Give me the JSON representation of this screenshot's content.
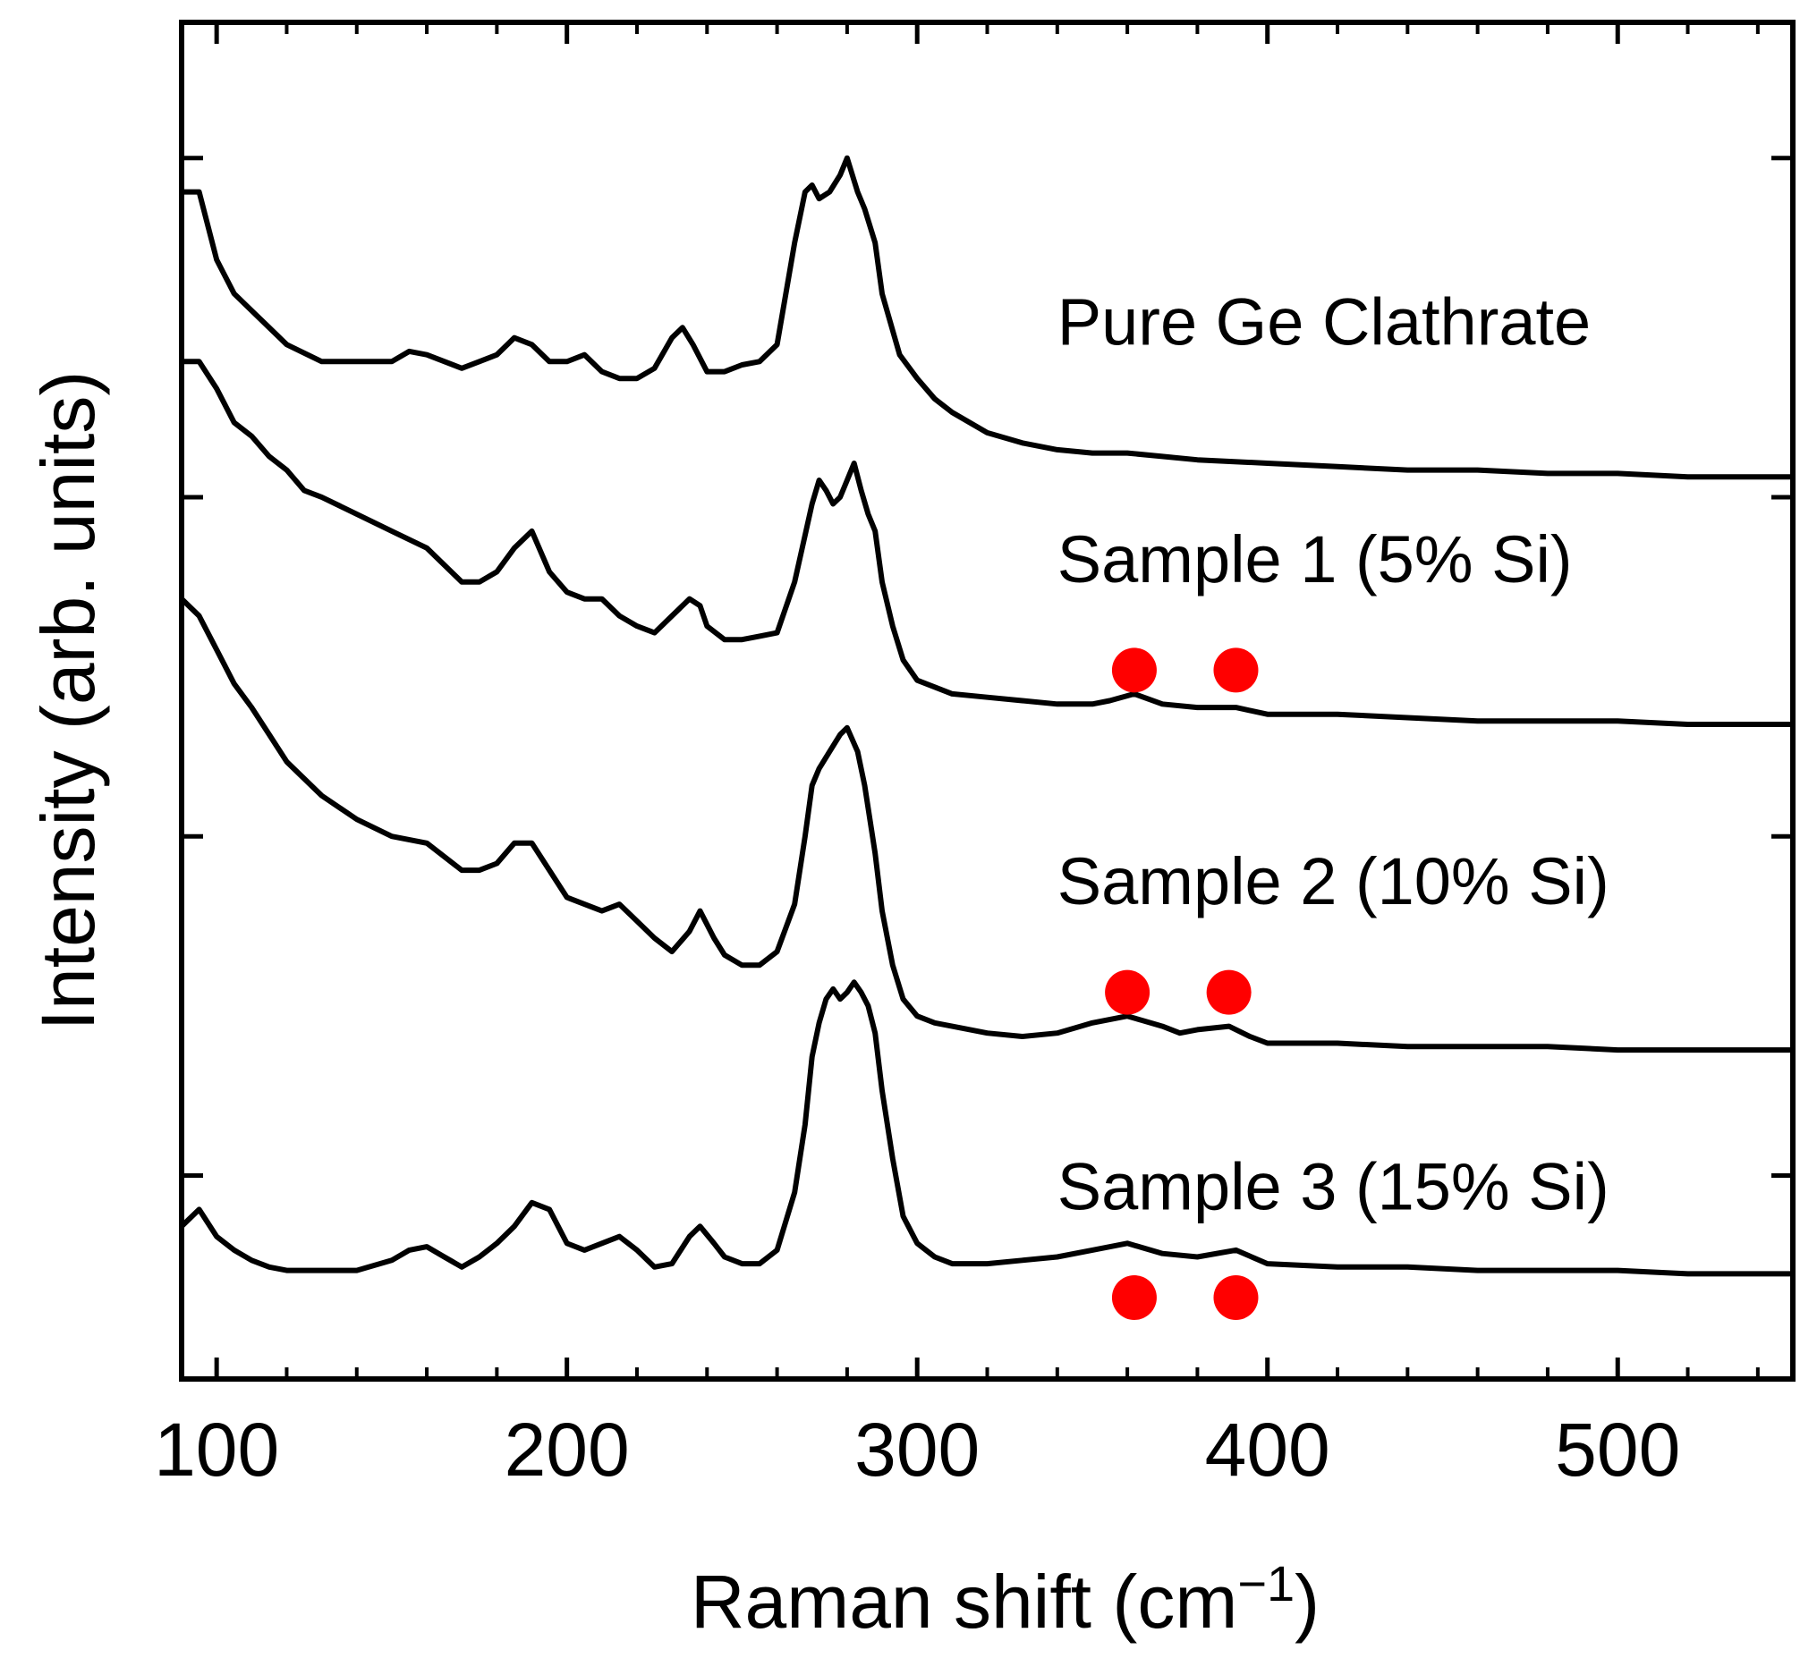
{
  "chart_data": {
    "type": "line",
    "title": "",
    "xlabel": "Raman shift (cm",
    "xlabel_superscript": "−1",
    "xlabel_suffix": ")",
    "ylabel": "Intensity (arb. units)",
    "xlim": [
      90,
      550
    ],
    "ylim": [
      0,
      4
    ],
    "x_ticks": [
      100,
      200,
      300,
      400,
      500
    ],
    "x_tick_labels": [
      "100",
      "200",
      "300",
      "400",
      "500"
    ],
    "x_minor_ticks": [
      120,
      140,
      160,
      180,
      220,
      240,
      260,
      280,
      320,
      340,
      360,
      380,
      420,
      440,
      460,
      480,
      520,
      540
    ],
    "y_ticks": [
      0.6,
      1.6,
      2.6,
      3.6
    ],
    "y_tick_labels": [],
    "grid": false,
    "line_color": "#000000",
    "marker_color": "#ff0000",
    "series": [
      {
        "name": "Pure Ge Clathrate",
        "label_x": 340,
        "label_y": 3.05,
        "markers": [],
        "x": [
          90,
          95,
          100,
          105,
          110,
          115,
          120,
          130,
          140,
          150,
          155,
          160,
          170,
          175,
          180,
          185,
          190,
          195,
          200,
          205,
          210,
          215,
          220,
          225,
          230,
          233,
          236,
          240,
          245,
          250,
          255,
          260,
          265,
          268,
          270,
          272,
          275,
          278,
          280,
          283,
          285,
          288,
          290,
          295,
          300,
          305,
          310,
          315,
          320,
          330,
          340,
          350,
          360,
          370,
          380,
          400,
          420,
          440,
          460,
          480,
          500,
          520,
          540,
          550
        ],
        "y": [
          3.5,
          3.5,
          3.3,
          3.2,
          3.15,
          3.1,
          3.05,
          3.0,
          3.0,
          3.0,
          3.03,
          3.02,
          2.98,
          3.0,
          3.02,
          3.07,
          3.05,
          3.0,
          3.0,
          3.02,
          2.97,
          2.95,
          2.95,
          2.98,
          3.07,
          3.1,
          3.05,
          2.97,
          2.97,
          2.99,
          3.0,
          3.05,
          3.35,
          3.5,
          3.52,
          3.48,
          3.5,
          3.55,
          3.6,
          3.5,
          3.45,
          3.35,
          3.2,
          3.02,
          2.95,
          2.89,
          2.85,
          2.82,
          2.79,
          2.76,
          2.74,
          2.73,
          2.73,
          2.72,
          2.71,
          2.7,
          2.69,
          2.68,
          2.68,
          2.67,
          2.67,
          2.66,
          2.66,
          2.66
        ]
      },
      {
        "name": "Sample 1 (5% Si)",
        "label_x": 340,
        "label_y": 2.35,
        "markers": [
          362,
          391
        ],
        "x": [
          90,
          95,
          100,
          105,
          110,
          115,
          120,
          125,
          130,
          140,
          150,
          160,
          170,
          175,
          180,
          185,
          190,
          195,
          200,
          205,
          210,
          215,
          220,
          225,
          230,
          235,
          238,
          240,
          245,
          250,
          255,
          260,
          265,
          270,
          272,
          274,
          276,
          278,
          280,
          282,
          284,
          286,
          288,
          290,
          293,
          296,
          300,
          305,
          310,
          320,
          330,
          340,
          350,
          355,
          362,
          370,
          380,
          391,
          400,
          420,
          440,
          460,
          480,
          500,
          520,
          540,
          550
        ],
        "y": [
          3.0,
          3.0,
          2.92,
          2.82,
          2.78,
          2.72,
          2.68,
          2.62,
          2.6,
          2.55,
          2.5,
          2.45,
          2.35,
          2.35,
          2.38,
          2.45,
          2.5,
          2.38,
          2.32,
          2.3,
          2.3,
          2.25,
          2.22,
          2.2,
          2.25,
          2.3,
          2.28,
          2.22,
          2.18,
          2.18,
          2.19,
          2.2,
          2.35,
          2.58,
          2.65,
          2.62,
          2.58,
          2.6,
          2.65,
          2.7,
          2.62,
          2.55,
          2.5,
          2.35,
          2.22,
          2.12,
          2.06,
          2.04,
          2.02,
          2.01,
          2.0,
          1.99,
          1.99,
          2.0,
          2.02,
          1.99,
          1.98,
          1.98,
          1.96,
          1.96,
          1.95,
          1.94,
          1.94,
          1.94,
          1.93,
          1.93,
          1.93
        ]
      },
      {
        "name": "Sample 2 (10% Si)",
        "label_x": 340,
        "label_y": 1.4,
        "markers": [
          360,
          389
        ],
        "x": [
          90,
          95,
          100,
          105,
          110,
          115,
          120,
          130,
          140,
          150,
          160,
          170,
          175,
          180,
          185,
          190,
          195,
          200,
          205,
          210,
          215,
          220,
          225,
          230,
          235,
          238,
          242,
          245,
          250,
          255,
          260,
          265,
          268,
          270,
          272,
          275,
          278,
          280,
          283,
          285,
          288,
          290,
          293,
          296,
          300,
          305,
          310,
          320,
          330,
          340,
          350,
          360,
          370,
          375,
          380,
          389,
          395,
          400,
          420,
          440,
          460,
          480,
          500,
          520,
          540,
          550
        ],
        "y": [
          2.3,
          2.25,
          2.15,
          2.05,
          1.98,
          1.9,
          1.82,
          1.72,
          1.65,
          1.6,
          1.58,
          1.5,
          1.5,
          1.52,
          1.58,
          1.58,
          1.5,
          1.42,
          1.4,
          1.38,
          1.4,
          1.35,
          1.3,
          1.26,
          1.32,
          1.38,
          1.3,
          1.25,
          1.22,
          1.22,
          1.26,
          1.4,
          1.6,
          1.75,
          1.8,
          1.85,
          1.9,
          1.92,
          1.85,
          1.75,
          1.55,
          1.38,
          1.22,
          1.12,
          1.07,
          1.05,
          1.04,
          1.02,
          1.01,
          1.02,
          1.05,
          1.07,
          1.04,
          1.02,
          1.03,
          1.04,
          1.01,
          0.99,
          0.99,
          0.98,
          0.98,
          0.98,
          0.97,
          0.97,
          0.97,
          0.97
        ]
      },
      {
        "name": "Sample 3 (15% Si)",
        "label_x": 340,
        "label_y": 0.5,
        "markers": [
          362,
          391
        ],
        "x": [
          90,
          95,
          100,
          105,
          110,
          115,
          120,
          130,
          140,
          150,
          155,
          160,
          165,
          170,
          175,
          180,
          185,
          190,
          195,
          200,
          205,
          210,
          215,
          220,
          225,
          230,
          235,
          238,
          242,
          245,
          250,
          255,
          260,
          265,
          268,
          270,
          272,
          274,
          276,
          278,
          280,
          282,
          284,
          286,
          288,
          290,
          293,
          296,
          300,
          305,
          310,
          320,
          330,
          340,
          350,
          360,
          370,
          380,
          391,
          400,
          420,
          440,
          460,
          480,
          500,
          520,
          540,
          550
        ],
        "y": [
          0.45,
          0.5,
          0.42,
          0.38,
          0.35,
          0.33,
          0.32,
          0.32,
          0.32,
          0.35,
          0.38,
          0.39,
          0.36,
          0.33,
          0.36,
          0.4,
          0.45,
          0.52,
          0.5,
          0.4,
          0.38,
          0.4,
          0.42,
          0.38,
          0.33,
          0.34,
          0.42,
          0.45,
          0.4,
          0.36,
          0.34,
          0.34,
          0.38,
          0.55,
          0.75,
          0.95,
          1.05,
          1.12,
          1.15,
          1.12,
          1.14,
          1.17,
          1.14,
          1.1,
          1.02,
          0.85,
          0.65,
          0.48,
          0.4,
          0.36,
          0.34,
          0.34,
          0.35,
          0.36,
          0.38,
          0.4,
          0.37,
          0.36,
          0.38,
          0.34,
          0.33,
          0.33,
          0.32,
          0.32,
          0.32,
          0.31,
          0.31,
          0.31
        ]
      }
    ]
  }
}
